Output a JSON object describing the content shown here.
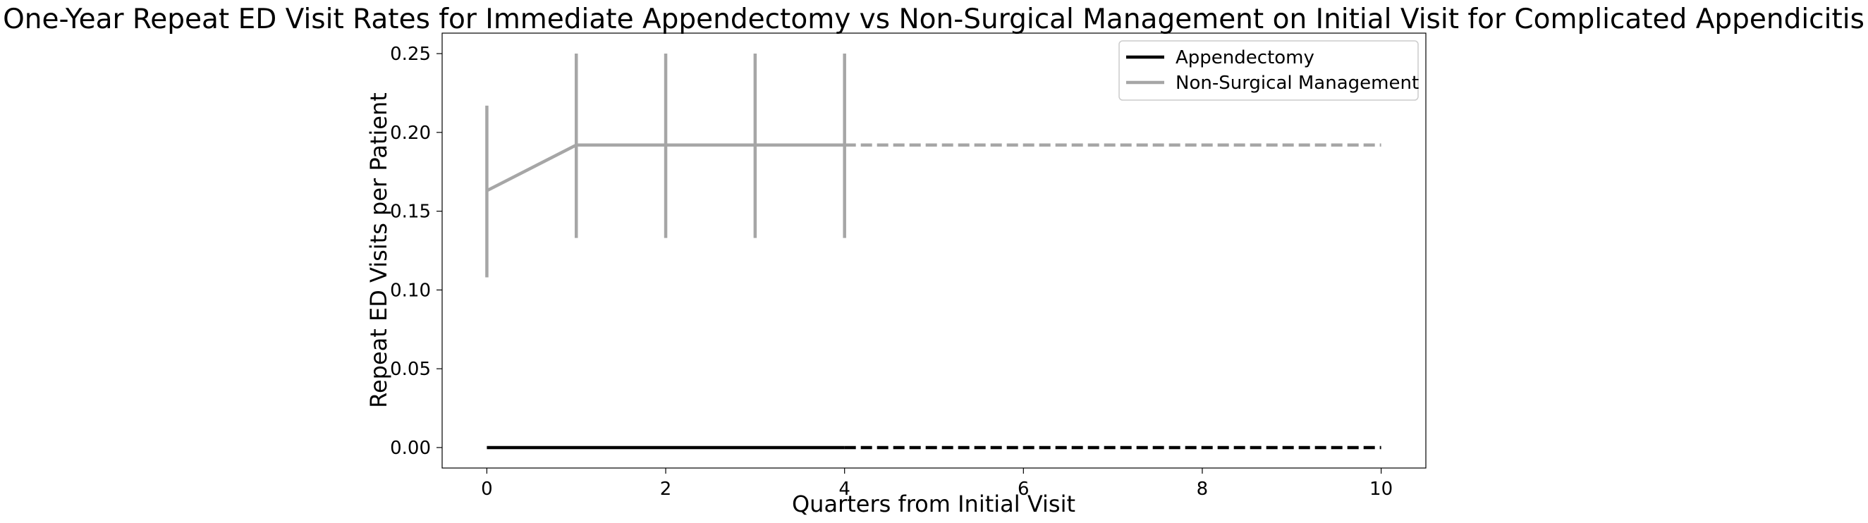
{
  "chart_data": {
    "type": "line",
    "title": "One-Year Repeat ED Visit Rates for Immediate Appendectomy vs Non-Surgical Management on Initial Visit for Complicated Appendicitis",
    "xlabel": "Quarters from Initial Visit",
    "ylabel": "Repeat ED Visits per Patient",
    "xlim": [
      -0.5,
      10.5
    ],
    "ylim": [
      -0.013,
      0.263
    ],
    "xticks": [
      0,
      2,
      4,
      6,
      8,
      10
    ],
    "xtick_labels": [
      "0",
      "2",
      "4",
      "6",
      "8",
      "10"
    ],
    "yticks": [
      0.0,
      0.05,
      0.1,
      0.15,
      0.2,
      0.25
    ],
    "ytick_labels": [
      "0.00",
      "0.05",
      "0.10",
      "0.15",
      "0.20",
      "0.25"
    ],
    "grid": false,
    "legend_position": "top-right",
    "series": [
      {
        "name": "Appendectomy",
        "color": "#000000",
        "x": [
          0,
          1,
          2,
          3,
          4
        ],
        "values": [
          0.0,
          0.0,
          0.0,
          0.0,
          0.0
        ],
        "error_low": [
          0.0,
          0.0,
          0.0,
          0.0,
          0.0
        ],
        "error_high": [
          0.0,
          0.0,
          0.0,
          0.0,
          0.0
        ],
        "extrapolation": {
          "x": [
            4,
            10
          ],
          "values": [
            0.0,
            0.0
          ],
          "style": "dashed"
        }
      },
      {
        "name": "Non-Surgical Management",
        "color": "#a6a6a6",
        "x": [
          0,
          1,
          2,
          3,
          4
        ],
        "values": [
          0.163,
          0.192,
          0.192,
          0.192,
          0.192
        ],
        "error_low": [
          0.108,
          0.133,
          0.133,
          0.133,
          0.133
        ],
        "error_high": [
          0.217,
          0.25,
          0.25,
          0.25,
          0.25
        ],
        "extrapolation": {
          "x": [
            4,
            10
          ],
          "values": [
            0.192,
            0.192
          ],
          "style": "dashed"
        }
      }
    ]
  }
}
